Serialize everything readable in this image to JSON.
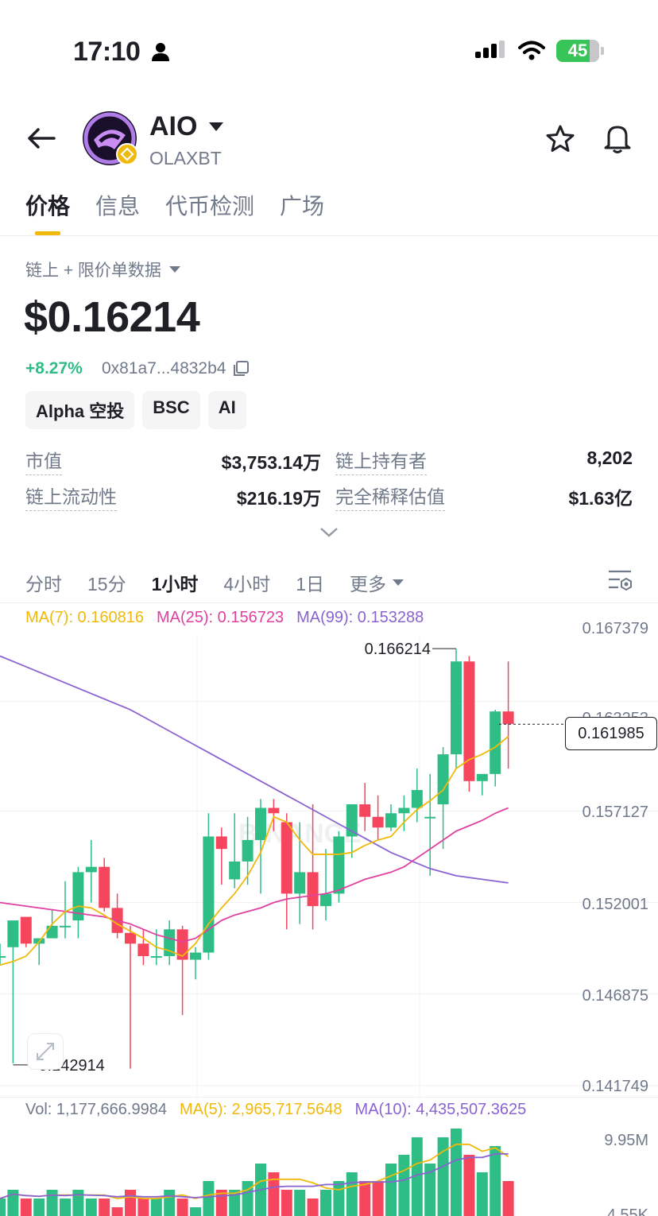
{
  "status_bar": {
    "time": "17:10",
    "battery": "45"
  },
  "token": {
    "name": "AIO",
    "subtitle": "OLAXBT"
  },
  "tabs": [
    "价格",
    "信息",
    "代币检测",
    "广场"
  ],
  "data_source": "链上 + 限价单数据",
  "price": "$0.16214",
  "change": "+8.27%",
  "contract": "0x81a7...4832b4",
  "chips": [
    "Alpha 空投",
    "BSC",
    "AI"
  ],
  "stats": [
    {
      "label": "市值",
      "value": "$3,753.14万"
    },
    {
      "label": "链上持有者",
      "value": "8,202"
    },
    {
      "label": "链上流动性",
      "value": "$216.19万"
    },
    {
      "label": "完全稀释估值",
      "value": "$1.63亿"
    }
  ],
  "intervals": [
    "分时",
    "15分",
    "1小时",
    "4小时",
    "1日",
    "更多"
  ],
  "ma": {
    "ma7": "MA(7): 0.160816",
    "ma25": "MA(25): 0.156723",
    "ma99": "MA(99): 0.153288"
  },
  "axis_labels": [
    "0.167379",
    "0.163253",
    "0.157127",
    "0.152001",
    "0.146875",
    "0.141749"
  ],
  "current_price": "0.161985",
  "high_label": "0.166214",
  "low_label": "0.142914",
  "watermark": "BINANCE",
  "vol": {
    "vol": "Vol: 1,177,666.9984",
    "ma5": "MA(5): 2,965,717.5648",
    "ma10": "MA(10): 4,435,507.3625"
  },
  "vol_axis": [
    "9.95M",
    "4.55K"
  ],
  "colors": {
    "up": "#2ebd85",
    "down": "#f6465d",
    "ma7": "#f0b90b",
    "ma25": "#e040a0",
    "ma99": "#8a63d2",
    "accent": "#f0b90b"
  },
  "candles": [
    {
      "o": 0.149,
      "h": 0.1497,
      "l": 0.1485,
      "c": 0.149
    },
    {
      "o": 0.1495,
      "h": 0.151,
      "l": 0.143,
      "c": 0.151
    },
    {
      "o": 0.1512,
      "h": 0.1512,
      "l": 0.1495,
      "c": 0.1497
    },
    {
      "o": 0.1497,
      "h": 0.15,
      "l": 0.1485,
      "c": 0.15
    },
    {
      "o": 0.15,
      "h": 0.1516,
      "l": 0.15,
      "c": 0.1507
    },
    {
      "o": 0.1507,
      "h": 0.1532,
      "l": 0.15,
      "c": 0.1507
    },
    {
      "o": 0.151,
      "h": 0.154,
      "l": 0.15,
      "c": 0.1537
    },
    {
      "o": 0.1537,
      "h": 0.1555,
      "l": 0.152,
      "c": 0.154
    },
    {
      "o": 0.154,
      "h": 0.1545,
      "l": 0.1515,
      "c": 0.1517
    },
    {
      "o": 0.1517,
      "h": 0.1525,
      "l": 0.15,
      "c": 0.1503
    },
    {
      "o": 0.1503,
      "h": 0.1507,
      "l": 0.1427,
      "c": 0.1497
    },
    {
      "o": 0.1497,
      "h": 0.1505,
      "l": 0.1485,
      "c": 0.149
    },
    {
      "o": 0.149,
      "h": 0.1505,
      "l": 0.1485,
      "c": 0.149
    },
    {
      "o": 0.149,
      "h": 0.151,
      "l": 0.1485,
      "c": 0.1505
    },
    {
      "o": 0.1505,
      "h": 0.1507,
      "l": 0.1457,
      "c": 0.1488
    },
    {
      "o": 0.1488,
      "h": 0.1495,
      "l": 0.1477,
      "c": 0.1492
    },
    {
      "o": 0.1492,
      "h": 0.157,
      "l": 0.1488,
      "c": 0.1557
    },
    {
      "o": 0.1557,
      "h": 0.1562,
      "l": 0.153,
      "c": 0.155
    },
    {
      "o": 0.1533,
      "h": 0.157,
      "l": 0.1528,
      "c": 0.1543
    },
    {
      "o": 0.1543,
      "h": 0.1568,
      "l": 0.153,
      "c": 0.1555
    },
    {
      "o": 0.1555,
      "h": 0.1578,
      "l": 0.1525,
      "c": 0.1573
    },
    {
      "o": 0.1573,
      "h": 0.1578,
      "l": 0.156,
      "c": 0.157
    },
    {
      "o": 0.1565,
      "h": 0.157,
      "l": 0.1505,
      "c": 0.1525
    },
    {
      "o": 0.1525,
      "h": 0.1565,
      "l": 0.1508,
      "c": 0.1537
    },
    {
      "o": 0.1537,
      "h": 0.1575,
      "l": 0.1505,
      "c": 0.1518
    },
    {
      "o": 0.1518,
      "h": 0.155,
      "l": 0.151,
      "c": 0.1525
    },
    {
      "o": 0.1525,
      "h": 0.156,
      "l": 0.152,
      "c": 0.1557
    },
    {
      "o": 0.1557,
      "h": 0.1575,
      "l": 0.1545,
      "c": 0.1575
    },
    {
      "o": 0.1575,
      "h": 0.1587,
      "l": 0.156,
      "c": 0.1568
    },
    {
      "o": 0.1568,
      "h": 0.158,
      "l": 0.1555,
      "c": 0.1562
    },
    {
      "o": 0.1562,
      "h": 0.1575,
      "l": 0.156,
      "c": 0.157
    },
    {
      "o": 0.157,
      "h": 0.158,
      "l": 0.156,
      "c": 0.1573
    },
    {
      "o": 0.1573,
      "h": 0.1595,
      "l": 0.1565,
      "c": 0.1583
    },
    {
      "o": 0.1568,
      "h": 0.1592,
      "l": 0.1535,
      "c": 0.1568
    },
    {
      "o": 0.1575,
      "h": 0.1607,
      "l": 0.155,
      "c": 0.1603
    },
    {
      "o": 0.1603,
      "h": 0.1662,
      "l": 0.1595,
      "c": 0.1655
    },
    {
      "o": 0.1655,
      "h": 0.1658,
      "l": 0.1582,
      "c": 0.1588
    },
    {
      "o": 0.1588,
      "h": 0.1592,
      "l": 0.158,
      "c": 0.1592
    },
    {
      "o": 0.1592,
      "h": 0.1628,
      "l": 0.1585,
      "c": 0.1627
    },
    {
      "o": 0.1627,
      "h": 0.1655,
      "l": 0.1595,
      "c": 0.162
    }
  ],
  "ma7_line": [
    0.1485,
    0.1487,
    0.149,
    0.1498,
    0.1508,
    0.1515,
    0.1518,
    0.1517,
    0.1513,
    0.1508,
    0.1504,
    0.15,
    0.1495,
    0.1493,
    0.149,
    0.1497,
    0.1508,
    0.1517,
    0.1525,
    0.1535,
    0.1548,
    0.1568,
    0.1565,
    0.1555,
    0.1547,
    0.1547,
    0.1547,
    0.1548,
    0.1552,
    0.1555,
    0.1557,
    0.1565,
    0.1572,
    0.1577,
    0.1583,
    0.1595,
    0.16,
    0.1603,
    0.1607,
    0.1613
  ],
  "ma25_line": [
    0.152,
    0.1519,
    0.1518,
    0.1517,
    0.1516,
    0.1515,
    0.1514,
    0.1513,
    0.1512,
    0.151,
    0.1508,
    0.1505,
    0.1502,
    0.15,
    0.1498,
    0.15,
    0.1505,
    0.151,
    0.1513,
    0.1515,
    0.1517,
    0.152,
    0.1522,
    0.1523,
    0.1524,
    0.1525,
    0.1527,
    0.153,
    0.1533,
    0.1535,
    0.1537,
    0.154,
    0.1545,
    0.155,
    0.1555,
    0.156,
    0.1563,
    0.1566,
    0.157,
    0.1573
  ],
  "ma99_line": [
    0.1658,
    0.1655,
    0.1652,
    0.1649,
    0.1646,
    0.1643,
    0.164,
    0.1637,
    0.1634,
    0.1631,
    0.1628,
    0.1624,
    0.162,
    0.1616,
    0.1612,
    0.1608,
    0.1604,
    0.16,
    0.1596,
    0.1592,
    0.1588,
    0.1584,
    0.158,
    0.1576,
    0.1572,
    0.1568,
    0.1564,
    0.156,
    0.1556,
    0.1552,
    0.1548,
    0.1545,
    0.1542,
    0.1539,
    0.1537,
    0.1535,
    0.1534,
    0.1533,
    0.1532,
    0.1531
  ],
  "volumes": [
    0.2,
    0.3,
    0.2,
    0.2,
    0.3,
    0.2,
    0.3,
    0.2,
    0.2,
    0.1,
    0.3,
    0.2,
    0.2,
    0.3,
    0.2,
    0.1,
    0.4,
    0.3,
    0.3,
    0.4,
    0.6,
    0.5,
    0.3,
    0.3,
    0.2,
    0.3,
    0.4,
    0.5,
    0.4,
    0.4,
    0.6,
    0.7,
    0.9,
    0.6,
    0.9,
    1.0,
    0.7,
    0.5,
    0.8,
    0.4
  ]
}
